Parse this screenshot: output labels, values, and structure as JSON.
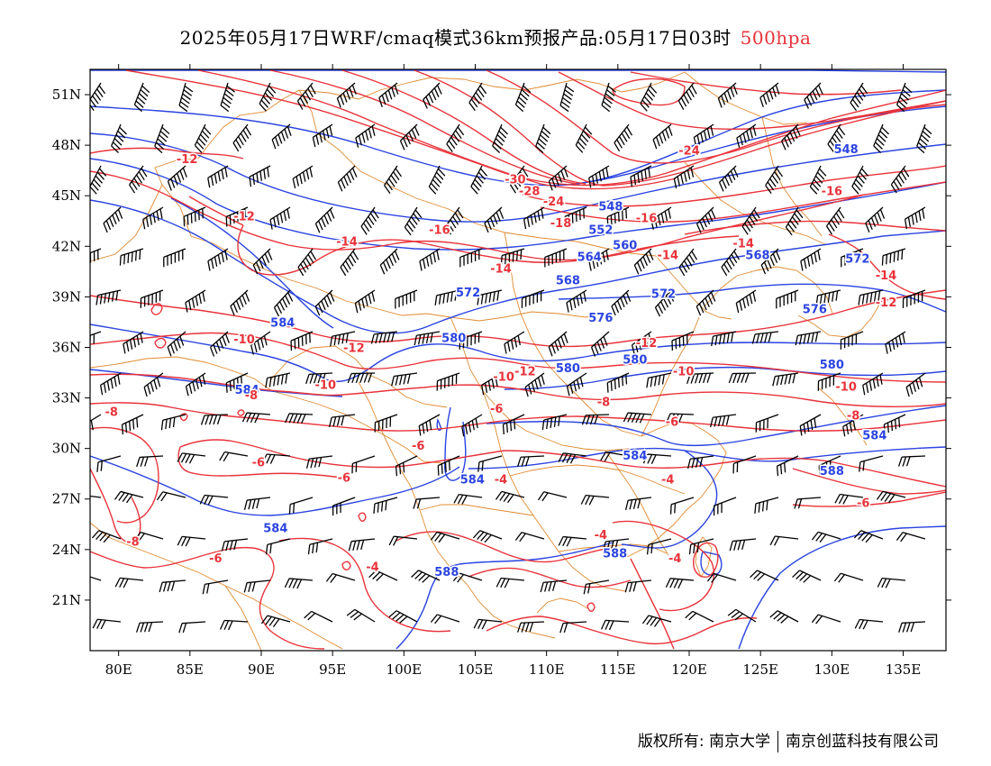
{
  "title": {
    "text": "2025年05月17日WRF/cmaq模式36km预报产品:05月17日03时",
    "level": "500hpa"
  },
  "axes": {
    "x_ticks": [
      "80E",
      "85E",
      "90E",
      "95E",
      "100E",
      "105E",
      "110E",
      "115E",
      "120E",
      "125E",
      "130E",
      "135E"
    ],
    "x_values": [
      80,
      85,
      90,
      95,
      100,
      105,
      110,
      115,
      120,
      125,
      130,
      135
    ],
    "y_ticks": [
      "51N",
      "48N",
      "45N",
      "42N",
      "39N",
      "36N",
      "33N",
      "30N",
      "27N",
      "24N",
      "21N"
    ],
    "y_values": [
      51,
      48,
      45,
      42,
      39,
      36,
      33,
      30,
      27,
      24,
      21
    ],
    "lon_range": [
      78,
      138
    ],
    "lat_range": [
      18,
      52.5
    ]
  },
  "colors": {
    "height_contour": "#2b44e0",
    "temperature_contour": "#e8333a",
    "boundary": "#e08a30",
    "wind_barb": "#000000",
    "level_label": "#e8333a"
  },
  "height_labels": [
    {
      "text": "548",
      "lon": 131.0,
      "lat": 47.8
    },
    {
      "text": "548",
      "lon": 114.5,
      "lat": 44.4
    },
    {
      "text": "552",
      "lon": 113.8,
      "lat": 43.0
    },
    {
      "text": "560",
      "lon": 115.5,
      "lat": 42.1
    },
    {
      "text": "564",
      "lon": 113.0,
      "lat": 41.4
    },
    {
      "text": "568",
      "lon": 124.8,
      "lat": 41.5
    },
    {
      "text": "572",
      "lon": 131.8,
      "lat": 41.3
    },
    {
      "text": "568",
      "lon": 111.5,
      "lat": 40.0
    },
    {
      "text": "572",
      "lon": 104.5,
      "lat": 39.3
    },
    {
      "text": "572",
      "lon": 118.2,
      "lat": 39.2
    },
    {
      "text": "576",
      "lon": 113.8,
      "lat": 37.8
    },
    {
      "text": "576",
      "lon": 128.8,
      "lat": 38.3
    },
    {
      "text": "584",
      "lon": 91.5,
      "lat": 37.5
    },
    {
      "text": "580",
      "lon": 103.5,
      "lat": 36.6
    },
    {
      "text": "580",
      "lon": 111.5,
      "lat": 34.8
    },
    {
      "text": "580",
      "lon": 116.2,
      "lat": 35.3
    },
    {
      "text": "580",
      "lon": 130.0,
      "lat": 35.0
    },
    {
      "text": "584",
      "lon": 89.0,
      "lat": 33.5
    },
    {
      "text": "584",
      "lon": 116.2,
      "lat": 29.6
    },
    {
      "text": "584",
      "lon": 133.0,
      "lat": 30.8
    },
    {
      "text": "584",
      "lon": 104.8,
      "lat": 28.2
    },
    {
      "text": "588",
      "lon": 130.0,
      "lat": 28.7
    },
    {
      "text": "584",
      "lon": 91.0,
      "lat": 25.3
    },
    {
      "text": "588",
      "lon": 114.8,
      "lat": 23.8
    },
    {
      "text": "588",
      "lon": 103.0,
      "lat": 22.7
    }
  ],
  "temp_labels": [
    {
      "text": "-12",
      "lon": 84.8,
      "lat": 47.2
    },
    {
      "text": "-12",
      "lon": 88.8,
      "lat": 43.8
    },
    {
      "text": "-30",
      "lon": 107.8,
      "lat": 46.0
    },
    {
      "text": "-28",
      "lon": 108.8,
      "lat": 45.3
    },
    {
      "text": "-24",
      "lon": 110.5,
      "lat": 44.7
    },
    {
      "text": "-18",
      "lon": 111.0,
      "lat": 43.4
    },
    {
      "text": "-16",
      "lon": 102.5,
      "lat": 43.0
    },
    {
      "text": "-24",
      "lon": 120.0,
      "lat": 47.7
    },
    {
      "text": "-16",
      "lon": 130.0,
      "lat": 45.3
    },
    {
      "text": "-16",
      "lon": 117.0,
      "lat": 43.7
    },
    {
      "text": "-14",
      "lon": 96.0,
      "lat": 42.3
    },
    {
      "text": "-14",
      "lon": 106.8,
      "lat": 40.7
    },
    {
      "text": "-14",
      "lon": 118.5,
      "lat": 41.5
    },
    {
      "text": "-14",
      "lon": 123.8,
      "lat": 42.2
    },
    {
      "text": "-14",
      "lon": 133.8,
      "lat": 40.3
    },
    {
      "text": "-12",
      "lon": 133.8,
      "lat": 38.7
    },
    {
      "text": "-10",
      "lon": 88.8,
      "lat": 36.5
    },
    {
      "text": "-12",
      "lon": 96.5,
      "lat": 36.0
    },
    {
      "text": "-12",
      "lon": 117.0,
      "lat": 36.3
    },
    {
      "text": "-12",
      "lon": 108.5,
      "lat": 34.6
    },
    {
      "text": "-10",
      "lon": 107.0,
      "lat": 34.3
    },
    {
      "text": "-10",
      "lon": 119.6,
      "lat": 34.6
    },
    {
      "text": "-10",
      "lon": 94.5,
      "lat": 33.8
    },
    {
      "text": "-10",
      "lon": 131.0,
      "lat": 33.7
    },
    {
      "text": "-8",
      "lon": 89.3,
      "lat": 33.2
    },
    {
      "text": "-8",
      "lon": 114.0,
      "lat": 32.8
    },
    {
      "text": "-8",
      "lon": 79.5,
      "lat": 32.2
    },
    {
      "text": "-6",
      "lon": 106.5,
      "lat": 32.4
    },
    {
      "text": "-8",
      "lon": 131.5,
      "lat": 32.0
    },
    {
      "text": "-6",
      "lon": 118.8,
      "lat": 31.6
    },
    {
      "text": "-6",
      "lon": 101.0,
      "lat": 30.2
    },
    {
      "text": "-6",
      "lon": 89.8,
      "lat": 29.2
    },
    {
      "text": "-6",
      "lon": 95.8,
      "lat": 28.3
    },
    {
      "text": "-4",
      "lon": 106.8,
      "lat": 28.2
    },
    {
      "text": "-4",
      "lon": 118.5,
      "lat": 28.2
    },
    {
      "text": "-6",
      "lon": 132.2,
      "lat": 26.8
    },
    {
      "text": "-8",
      "lon": 81.0,
      "lat": 24.5
    },
    {
      "text": "-6",
      "lon": 86.8,
      "lat": 23.5
    },
    {
      "text": "-4",
      "lon": 97.8,
      "lat": 23.0
    },
    {
      "text": "-4",
      "lon": 113.8,
      "lat": 24.9
    },
    {
      "text": "-4",
      "lon": 119.0,
      "lat": 23.5
    }
  ],
  "footer": {
    "left": "版权所有: 南京大学",
    "right": "南京创蓝科技有限公司"
  }
}
